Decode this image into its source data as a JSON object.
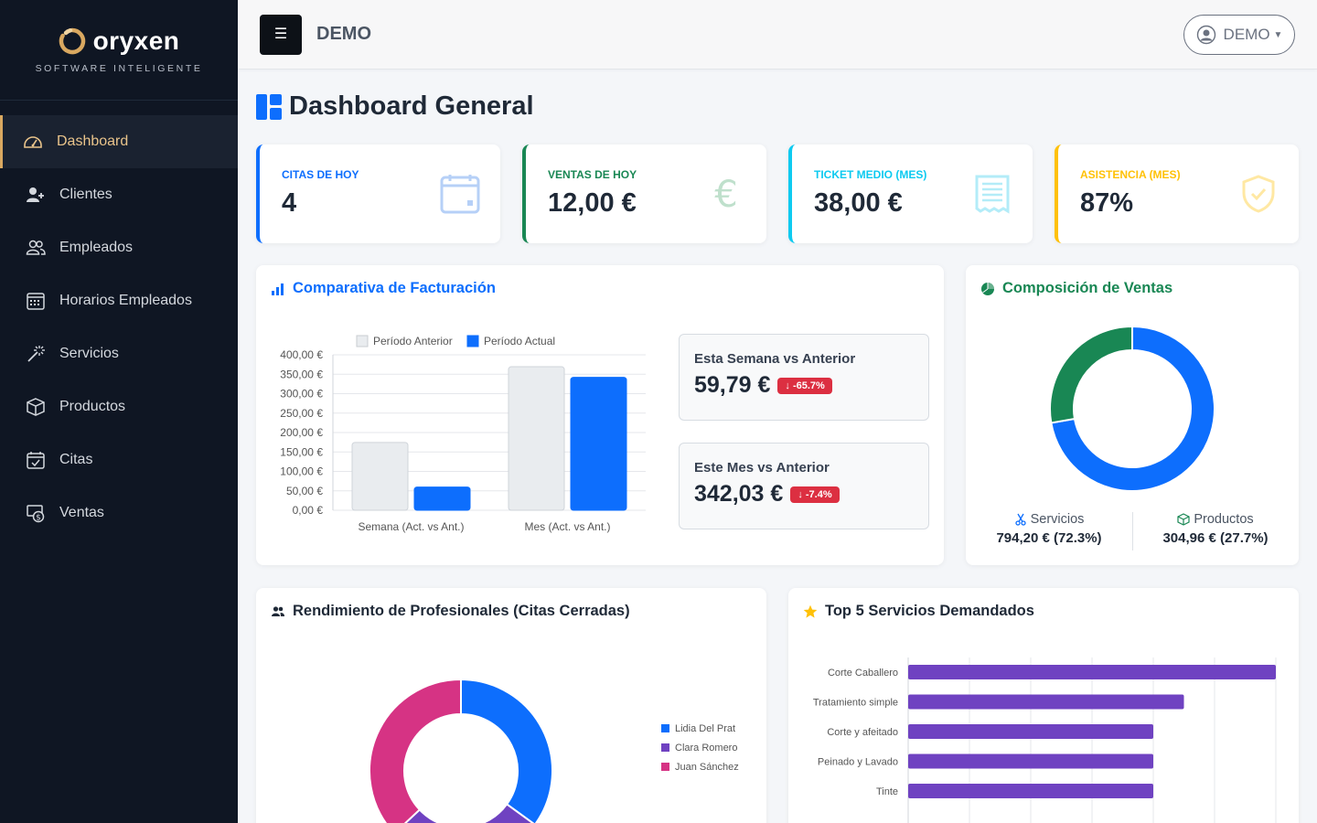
{
  "brand": {
    "name": "oryxen",
    "tagline": "SOFTWARE INTELIGENTE"
  },
  "sidebar": {
    "items": [
      {
        "label": "Dashboard",
        "icon": "speedometer-icon",
        "active": true
      },
      {
        "label": "Clientes",
        "icon": "person-add-icon"
      },
      {
        "label": "Empleados",
        "icon": "people-icon"
      },
      {
        "label": "Horarios Empleados",
        "icon": "calendar-grid-icon"
      },
      {
        "label": "Servicios",
        "icon": "magic-wand-icon"
      },
      {
        "label": "Productos",
        "icon": "box-icon"
      },
      {
        "label": "Citas",
        "icon": "calendar-check-icon"
      },
      {
        "label": "Ventas",
        "icon": "cash-register-icon"
      }
    ]
  },
  "topbar": {
    "title": "DEMO",
    "user_label": "DEMO"
  },
  "page": {
    "title": "Dashboard General"
  },
  "kpis": [
    {
      "label": "CITAS DE HOY",
      "value": "4",
      "color": "#0d6efd",
      "icon": "calendar-icon"
    },
    {
      "label": "VENTAS DE HOY",
      "value": "12,00 €",
      "color": "#198754",
      "icon": "euro-icon"
    },
    {
      "label": "TICKET MEDIO (MES)",
      "value": "38,00 €",
      "color": "#0dcaf0",
      "icon": "receipt-icon"
    },
    {
      "label": "ASISTENCIA (MES)",
      "value": "87%",
      "color": "#ffc107",
      "icon": "shield-check-icon"
    }
  ],
  "billing": {
    "title": "Comparativa de Facturación",
    "comparisons": [
      {
        "label": "Esta Semana vs Anterior",
        "value": "59,79 €",
        "badge": "↓ -65.7%"
      },
      {
        "label": "Este Mes vs Anterior",
        "value": "342,03 €",
        "badge": "↓ -7.4%"
      }
    ]
  },
  "composition": {
    "title": "Composición de Ventas",
    "services_label": "Servicios",
    "services_value": "794,20 € (72.3%)",
    "products_label": "Productos",
    "products_value": "304,96 € (27.7%)"
  },
  "performance": {
    "title": "Rendimiento de Profesionales (Citas Cerradas)"
  },
  "top_services": {
    "title": "Top 5 Servicios Demandados"
  },
  "chart_data": [
    {
      "type": "bar",
      "categories": [
        "Semana (Act. vs Ant.)",
        "Mes (Act. vs Ant.)"
      ],
      "series": [
        {
          "name": "Período Anterior",
          "values": [
            174.4,
            369.3
          ],
          "color": "#e9ecef"
        },
        {
          "name": "Período Actual",
          "values": [
            59.79,
            342.03
          ],
          "color": "#0d6efd"
        }
      ],
      "ylim": [
        0,
        400
      ],
      "yticks": [
        "0,00 €",
        "50,00 €",
        "100,00 €",
        "150,00 €",
        "200,00 €",
        "250,00 €",
        "300,00 €",
        "350,00 €",
        "400,00 €"
      ],
      "legend": "top"
    },
    {
      "type": "pie",
      "labels": [
        "Servicios",
        "Productos"
      ],
      "values": [
        794.2,
        304.96
      ],
      "colors": [
        "#0d6efd",
        "#198754"
      ]
    },
    {
      "type": "pie",
      "labels": [
        "Lidia Del Prat",
        "Clara Romero",
        "Juan Sánchez"
      ],
      "values": [
        35,
        28,
        37
      ],
      "colors": [
        "#0d6efd",
        "#6f42c1",
        "#d63384"
      ],
      "legend": "right"
    },
    {
      "type": "bar",
      "orientation": "horizontal",
      "categories": [
        "Corte Caballero",
        "Tratamiento simple",
        "Corte y afeitado",
        "Peinado y Lavado",
        "Tinte"
      ],
      "values": [
        12,
        9,
        8,
        8,
        8
      ],
      "xlim": [
        0,
        12
      ],
      "xticks": [
        "0",
        "2",
        "4",
        "6",
        "8",
        "10",
        "12"
      ],
      "color": "#6f42c1"
    }
  ]
}
